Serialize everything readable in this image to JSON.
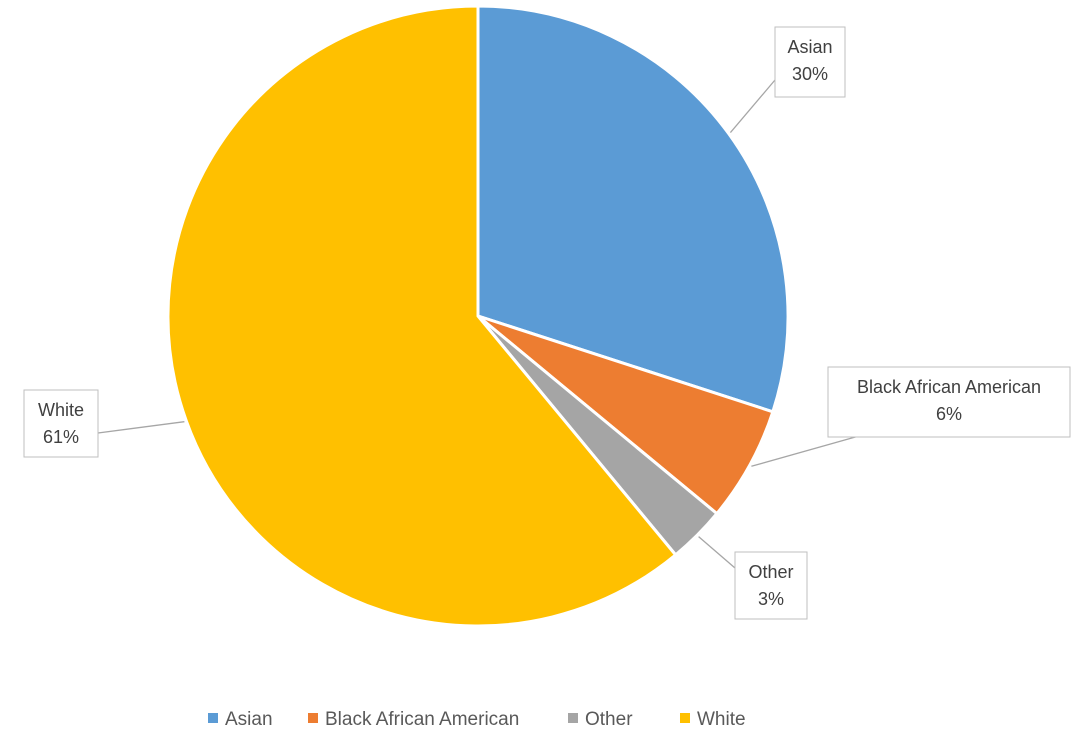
{
  "chart_data": {
    "type": "pie",
    "title": "",
    "slices": [
      {
        "label": "Asian",
        "value": 30,
        "display": "30%",
        "color": "#5b9bd5"
      },
      {
        "label": "Black African American",
        "value": 6,
        "display": "6%",
        "color": "#ed7d31"
      },
      {
        "label": "Other",
        "value": 3,
        "display": "3%",
        "color": "#a5a5a5"
      },
      {
        "label": "White",
        "value": 61,
        "display": "61%",
        "color": "#ffc000"
      }
    ],
    "legend": {
      "position": "bottom",
      "entries": [
        "Asian",
        "Black African American",
        "Other",
        "White"
      ]
    },
    "start_angle": "12 o'clock",
    "direction": "clockwise"
  }
}
